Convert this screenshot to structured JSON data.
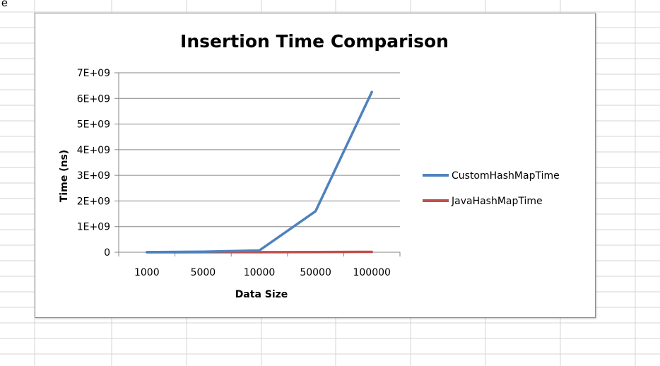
{
  "sheet": {
    "cell_text": "e"
  },
  "chart_data": {
    "type": "line",
    "title": "Insertion Time Comparison",
    "xlabel": "Data Size",
    "ylabel": "Time (ns)",
    "categories": [
      "1000",
      "5000",
      "10000",
      "50000",
      "100000"
    ],
    "ylim": [
      0,
      7000000000
    ],
    "yticks": [
      0,
      1000000000,
      2000000000,
      3000000000,
      4000000000,
      5000000000,
      6000000000,
      7000000000
    ],
    "ytick_labels": [
      "0",
      "1E+09",
      "2E+09",
      "3E+09",
      "4E+09",
      "5E+09",
      "6E+09",
      "7E+09"
    ],
    "grid": true,
    "legend_position": "right",
    "series": [
      {
        "name": "CustomHashMapTime",
        "color": "#4f81bd",
        "values": [
          2000000,
          20000000,
          70000000,
          1600000000,
          6250000000
        ]
      },
      {
        "name": "JavaHashMapTime",
        "color": "#c0504d",
        "values": [
          1000000,
          2000000,
          3000000,
          8000000,
          15000000
        ]
      }
    ]
  }
}
